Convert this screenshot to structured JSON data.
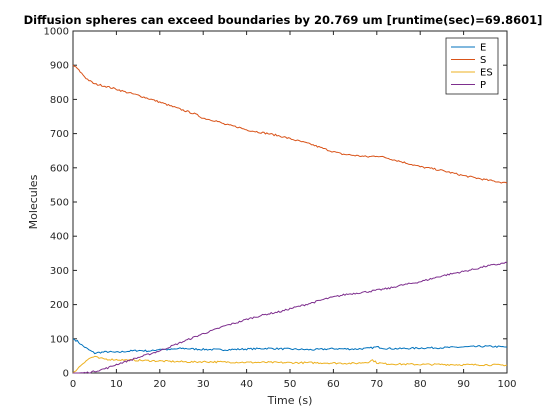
{
  "chart_data": {
    "type": "line",
    "title": "Diffusion spheres can exceed boundaries by 20.769 um [runtime(sec)=69.8601]",
    "xlabel": "Time (s)",
    "ylabel": "Molecules",
    "xlim": [
      0,
      100
    ],
    "ylim": [
      0,
      1000
    ],
    "xticks": [
      0,
      10,
      20,
      30,
      40,
      50,
      60,
      70,
      80,
      90,
      100
    ],
    "yticks": [
      0,
      100,
      200,
      300,
      400,
      500,
      600,
      700,
      800,
      900,
      1000
    ],
    "grid": false,
    "legend": "top-right",
    "series": [
      {
        "name": "E",
        "color": "#0072BD",
        "x": [
          0,
          1,
          2,
          3,
          4,
          5,
          6,
          8,
          10,
          12,
          15,
          18,
          20,
          22,
          25,
          28,
          30,
          35,
          40,
          45,
          50,
          55,
          60,
          65,
          68,
          70,
          72,
          75,
          80,
          85,
          90,
          95,
          100
        ],
        "y": [
          100,
          93,
          82,
          73,
          65,
          58,
          60,
          62,
          60,
          63,
          66,
          64,
          70,
          68,
          72,
          70,
          69,
          68,
          70,
          72,
          70,
          68,
          71,
          70,
          72,
          76,
          72,
          71,
          73,
          74,
          76,
          78,
          76
        ]
      },
      {
        "name": "S",
        "color": "#D95319",
        "x": [
          0,
          1,
          2,
          3,
          4,
          5,
          7,
          10,
          12,
          15,
          18,
          20,
          22,
          25,
          28,
          30,
          33,
          35,
          38,
          40,
          43,
          45,
          48,
          50,
          53,
          55,
          58,
          60,
          62,
          65,
          68,
          70,
          72,
          75,
          78,
          80,
          83,
          85,
          88,
          90,
          93,
          95,
          98,
          100
        ],
        "y": [
          900,
          890,
          876,
          862,
          853,
          845,
          840,
          830,
          822,
          812,
          800,
          792,
          783,
          770,
          758,
          745,
          737,
          727,
          719,
          711,
          704,
          700,
          692,
          685,
          675,
          668,
          655,
          647,
          640,
          636,
          632,
          635,
          630,
          620,
          610,
          603,
          597,
          592,
          583,
          577,
          570,
          565,
          559,
          555
        ]
      },
      {
        "name": "ES",
        "color": "#EDB120",
        "x": [
          0,
          1,
          2,
          3,
          4,
          5,
          6,
          8,
          10,
          12,
          15,
          18,
          20,
          22,
          25,
          28,
          30,
          35,
          40,
          45,
          50,
          55,
          60,
          65,
          68,
          69,
          70,
          72,
          75,
          80,
          85,
          90,
          95,
          100
        ],
        "y": [
          0,
          12,
          25,
          36,
          44,
          48,
          43,
          40,
          39,
          38,
          37,
          36,
          35,
          34,
          33,
          32,
          33,
          32,
          31,
          31,
          30,
          30,
          29,
          28,
          32,
          38,
          30,
          27,
          26,
          25,
          25,
          24,
          24,
          23
        ]
      },
      {
        "name": "P",
        "color": "#7E2F8E",
        "x": [
          0,
          2,
          4,
          6,
          8,
          10,
          12,
          15,
          18,
          20,
          22,
          25,
          28,
          30,
          33,
          35,
          38,
          40,
          43,
          45,
          48,
          50,
          53,
          55,
          58,
          60,
          63,
          65,
          68,
          70,
          73,
          75,
          78,
          80,
          83,
          85,
          88,
          90,
          93,
          95,
          98,
          100
        ],
        "y": [
          0,
          0,
          2,
          8,
          15,
          25,
          33,
          45,
          57,
          65,
          75,
          90,
          105,
          115,
          128,
          138,
          148,
          157,
          167,
          173,
          180,
          188,
          198,
          205,
          216,
          222,
          230,
          233,
          238,
          242,
          248,
          255,
          262,
          267,
          277,
          284,
          292,
          297,
          305,
          312,
          318,
          323
        ]
      }
    ]
  }
}
